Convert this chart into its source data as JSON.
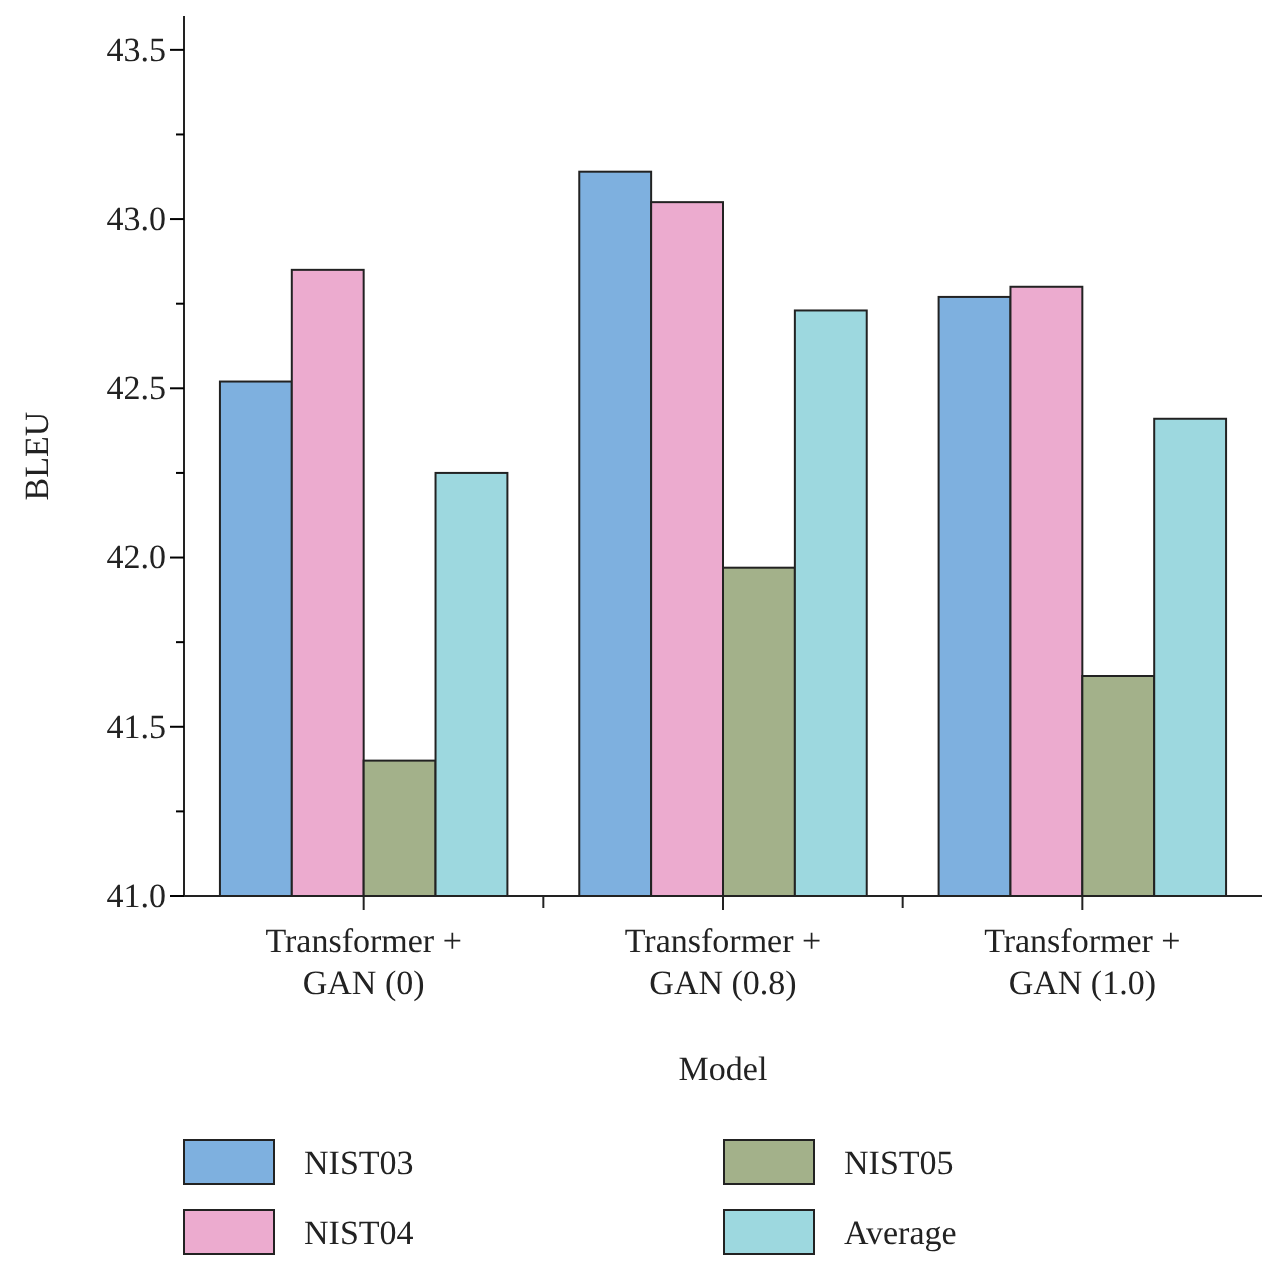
{
  "chart_data": {
    "type": "bar",
    "xlabel": "Model",
    "ylabel": "BLEU",
    "categories": [
      "Transformer + GAN (0)",
      "Transformer + GAN (0.8)",
      "Transformer + GAN (1.0)"
    ],
    "series": [
      {
        "name": "NIST03",
        "color": "#7eb0df",
        "values": [
          42.52,
          43.14,
          42.77
        ]
      },
      {
        "name": "NIST04",
        "color": "#ecabcf",
        "values": [
          42.85,
          43.05,
          42.8
        ]
      },
      {
        "name": "NIST05",
        "color": "#a3b18a",
        "values": [
          41.4,
          41.97,
          41.65
        ]
      },
      {
        "name": "Average",
        "color": "#9dd8df",
        "values": [
          42.25,
          42.73,
          42.41
        ]
      }
    ],
    "ylim": [
      41.0,
      43.6
    ],
    "yticks": [
      {
        "value": 41.0,
        "label": "41.0"
      },
      {
        "value": 41.25,
        "label": null
      },
      {
        "value": 41.5,
        "label": "41.5"
      },
      {
        "value": 41.75,
        "label": null
      },
      {
        "value": 42.0,
        "label": "42.0"
      },
      {
        "value": 42.25,
        "label": null
      },
      {
        "value": 42.5,
        "label": "42.5"
      },
      {
        "value": 42.75,
        "label": null
      },
      {
        "value": 43.0,
        "label": "43.0"
      },
      {
        "value": 43.25,
        "label": null
      },
      {
        "value": 43.5,
        "label": "43.5"
      }
    ],
    "grid": false,
    "legend": "bottom"
  }
}
